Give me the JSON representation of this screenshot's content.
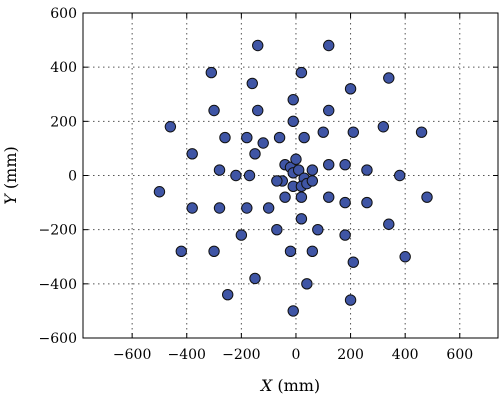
{
  "chart_data": {
    "type": "scatter",
    "xlabel_var": "X",
    "xlabel_unit": " (mm)",
    "ylabel_var": "Y",
    "ylabel_unit": " (mm)",
    "xlim": [
      -780,
      740
    ],
    "ylim": [
      -600,
      600
    ],
    "xticks": [
      -600,
      -400,
      -200,
      0,
      200,
      400,
      600
    ],
    "yticks": [
      -600,
      -400,
      -200,
      0,
      200,
      400,
      600
    ],
    "grid": true,
    "marker_color": "#3f55a5",
    "points": [
      {
        "x": -140,
        "y": 480
      },
      {
        "x": 120,
        "y": 480
      },
      {
        "x": -310,
        "y": 380
      },
      {
        "x": 20,
        "y": 380
      },
      {
        "x": 340,
        "y": 360
      },
      {
        "x": -160,
        "y": 340
      },
      {
        "x": 200,
        "y": 320
      },
      {
        "x": -300,
        "y": 240
      },
      {
        "x": -140,
        "y": 240
      },
      {
        "x": 120,
        "y": 240
      },
      {
        "x": -10,
        "y": 280
      },
      {
        "x": -10,
        "y": 200
      },
      {
        "x": -460,
        "y": 180
      },
      {
        "x": -260,
        "y": 140
      },
      {
        "x": -180,
        "y": 140
      },
      {
        "x": 30,
        "y": 140
      },
      {
        "x": 100,
        "y": 160
      },
      {
        "x": 210,
        "y": 160
      },
      {
        "x": 320,
        "y": 180
      },
      {
        "x": 460,
        "y": 160
      },
      {
        "x": -120,
        "y": 120
      },
      {
        "x": -60,
        "y": 140
      },
      {
        "x": -380,
        "y": 80
      },
      {
        "x": -150,
        "y": 80
      },
      {
        "x": -280,
        "y": 20
      },
      {
        "x": -220,
        "y": 0
      },
      {
        "x": -170,
        "y": 0
      },
      {
        "x": 120,
        "y": 40
      },
      {
        "x": 180,
        "y": 40
      },
      {
        "x": 260,
        "y": 20
      },
      {
        "x": 380,
        "y": 0
      },
      {
        "x": -40,
        "y": 40
      },
      {
        "x": -20,
        "y": 30
      },
      {
        "x": 0,
        "y": 60
      },
      {
        "x": -10,
        "y": 10
      },
      {
        "x": 10,
        "y": 20
      },
      {
        "x": 30,
        "y": -10
      },
      {
        "x": -50,
        "y": -20
      },
      {
        "x": -70,
        "y": -20
      },
      {
        "x": -10,
        "y": -40
      },
      {
        "x": 20,
        "y": -40
      },
      {
        "x": 40,
        "y": -30
      },
      {
        "x": 60,
        "y": -20
      },
      {
        "x": 60,
        "y": 20
      },
      {
        "x": 20,
        "y": -80
      },
      {
        "x": -40,
        "y": -80
      },
      {
        "x": -500,
        "y": -60
      },
      {
        "x": -380,
        "y": -120
      },
      {
        "x": -280,
        "y": -120
      },
      {
        "x": -180,
        "y": -120
      },
      {
        "x": -100,
        "y": -120
      },
      {
        "x": 120,
        "y": -80
      },
      {
        "x": 180,
        "y": -100
      },
      {
        "x": 260,
        "y": -100
      },
      {
        "x": 480,
        "y": -80
      },
      {
        "x": 20,
        "y": -160
      },
      {
        "x": -70,
        "y": -200
      },
      {
        "x": 80,
        "y": -200
      },
      {
        "x": 180,
        "y": -220
      },
      {
        "x": 340,
        "y": -180
      },
      {
        "x": -200,
        "y": -220
      },
      {
        "x": -420,
        "y": -280
      },
      {
        "x": -300,
        "y": -280
      },
      {
        "x": -20,
        "y": -280
      },
      {
        "x": 60,
        "y": -280
      },
      {
        "x": 210,
        "y": -320
      },
      {
        "x": 400,
        "y": -300
      },
      {
        "x": -150,
        "y": -380
      },
      {
        "x": 40,
        "y": -400
      },
      {
        "x": -250,
        "y": -440
      },
      {
        "x": 200,
        "y": -460
      },
      {
        "x": -10,
        "y": -500
      }
    ]
  }
}
